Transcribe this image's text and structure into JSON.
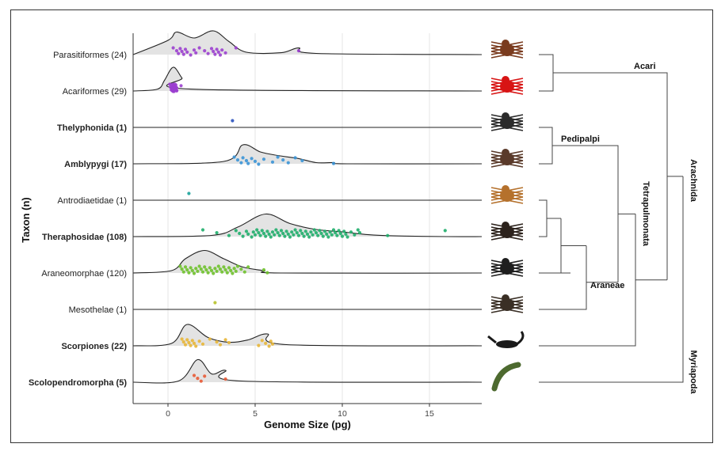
{
  "chart_data": {
    "type": "ridgeline",
    "xlabel": "Genome Size (pg)",
    "ylabel": "Taxon (n)",
    "xlim": [
      -2,
      18
    ],
    "xticks": [
      0,
      5,
      10,
      15
    ],
    "grid": "vertical",
    "rows": [
      {
        "label": "Parasitiformes (24)",
        "bold": false,
        "color": "#9b3fcf",
        "points": [
          0.3,
          0.5,
          0.6,
          0.7,
          0.8,
          0.9,
          1.0,
          1.1,
          1.3,
          1.5,
          1.6,
          1.8,
          2.1,
          2.3,
          2.5,
          2.6,
          2.7,
          2.8,
          2.9,
          3.0,
          3.1,
          3.3,
          3.9,
          7.5
        ],
        "density": [
          [
            0,
            0.6
          ],
          [
            0.5,
            0.95
          ],
          [
            1.5,
            0.7
          ],
          [
            2.6,
            1.0
          ],
          [
            3.5,
            0.55
          ],
          [
            4.5,
            0.1
          ],
          [
            6.5,
            0.08
          ],
          [
            7.5,
            0.28
          ],
          [
            8.5,
            0.05
          ]
        ]
      },
      {
        "label": "Acariformes (29)",
        "bold": false,
        "color": "#9b3fcf",
        "points": [
          0.1,
          0.15,
          0.2,
          0.2,
          0.25,
          0.25,
          0.3,
          0.3,
          0.3,
          0.35,
          0.35,
          0.4,
          0.4,
          0.4,
          0.45,
          0.5,
          0.5,
          0.3,
          0.2,
          0.35,
          0.25,
          0.4,
          0.3,
          0.45,
          0.2,
          0.3,
          0.35,
          0.5,
          0.75
        ],
        "density": [
          [
            -0.6,
            0.08
          ],
          [
            -0.2,
            0.45
          ],
          [
            0.3,
            1.0
          ],
          [
            0.8,
            0.55
          ],
          [
            1.3,
            0.08
          ]
        ]
      },
      {
        "label": "Thelyphonida (1)",
        "bold": true,
        "color": "#2a52be",
        "points": [
          3.7
        ],
        "density": []
      },
      {
        "label": "Amblypygi (17)",
        "bold": true,
        "color": "#3a93d6",
        "points": [
          3.8,
          4.0,
          4.2,
          4.3,
          4.5,
          4.6,
          4.8,
          5.0,
          5.2,
          5.5,
          6.0,
          6.3,
          6.6,
          6.9,
          7.3,
          7.7,
          9.5
        ],
        "density": [
          [
            3.2,
            0.1
          ],
          [
            4.3,
            0.8
          ],
          [
            5.3,
            0.5
          ],
          [
            6.3,
            0.35
          ],
          [
            7.5,
            0.22
          ],
          [
            8.5,
            0.05
          ],
          [
            9.5,
            0.05
          ],
          [
            10.3,
            0.0
          ]
        ]
      },
      {
        "label": "Antrodiaetidae (1)",
        "bold": false,
        "color": "#1aa39b",
        "points": [
          1.2
        ],
        "density": []
      },
      {
        "label": "Theraphosidae (108)",
        "bold": true,
        "color": "#1fae6b",
        "points": [
          2.0,
          2.8,
          3.5,
          3.9,
          4.1,
          4.3,
          4.5,
          4.6,
          4.8,
          4.9,
          5.0,
          5.1,
          5.2,
          5.3,
          5.4,
          5.5,
          5.6,
          5.7,
          5.8,
          5.9,
          6.0,
          6.1,
          6.2,
          6.3,
          6.4,
          6.5,
          6.6,
          6.7,
          6.8,
          6.9,
          7.0,
          7.1,
          7.2,
          7.3,
          7.4,
          7.5,
          7.6,
          7.7,
          7.8,
          7.9,
          8.0,
          8.1,
          8.2,
          8.3,
          8.4,
          8.5,
          8.6,
          8.7,
          8.8,
          8.9,
          9.0,
          9.1,
          9.2,
          9.3,
          9.4,
          9.5,
          9.6,
          9.7,
          9.8,
          9.9,
          10.0,
          10.1,
          10.2,
          10.3,
          10.5,
          10.7,
          10.9,
          11.0,
          12.6,
          15.9
        ],
        "density": [
          [
            2.5,
            0.05
          ],
          [
            4.0,
            0.4
          ],
          [
            5.6,
            0.95
          ],
          [
            7.0,
            0.55
          ],
          [
            8.5,
            0.3
          ],
          [
            10.0,
            0.2
          ],
          [
            11.5,
            0.08
          ],
          [
            13.0,
            0.03
          ],
          [
            16.0,
            0.0
          ]
        ]
      },
      {
        "label": "Araneomorphae (120)",
        "bold": false,
        "color": "#6ec12b",
        "points": [
          0.7,
          0.8,
          0.9,
          1.0,
          1.1,
          1.2,
          1.3,
          1.4,
          1.5,
          1.6,
          1.7,
          1.8,
          1.9,
          2.0,
          2.1,
          2.2,
          2.3,
          2.4,
          2.5,
          2.6,
          2.7,
          2.8,
          2.9,
          3.0,
          3.1,
          3.2,
          3.3,
          3.4,
          3.5,
          3.6,
          3.7,
          3.8,
          3.9,
          4.0,
          4.2,
          4.4,
          4.6,
          5.5,
          5.7
        ],
        "density": [
          [
            0.2,
            0.1
          ],
          [
            1.0,
            0.6
          ],
          [
            2.1,
            0.95
          ],
          [
            3.2,
            0.6
          ],
          [
            4.3,
            0.25
          ],
          [
            5.5,
            0.1
          ],
          [
            6.5,
            0.0
          ]
        ]
      },
      {
        "label": "Mesothelae (1)",
        "bold": false,
        "color": "#b7c22b",
        "points": [
          2.7
        ],
        "density": []
      },
      {
        "label": "Scorpiones (22)",
        "bold": true,
        "color": "#e8b637",
        "points": [
          0.8,
          0.9,
          1.0,
          1.1,
          1.2,
          1.3,
          1.4,
          1.5,
          1.6,
          1.8,
          2.0,
          2.4,
          2.8,
          3.0,
          3.3,
          3.5,
          5.2,
          5.4,
          5.6,
          5.8,
          5.9,
          6.0
        ],
        "density": [
          [
            0.2,
            0.1
          ],
          [
            1.1,
            0.9
          ],
          [
            2.3,
            0.35
          ],
          [
            3.5,
            0.15
          ],
          [
            4.6,
            0.25
          ],
          [
            5.7,
            0.5
          ],
          [
            6.8,
            0.05
          ]
        ]
      },
      {
        "label": "Scolopendromorpha (5)",
        "bold": true,
        "color": "#e85a35",
        "points": [
          1.5,
          1.7,
          1.9,
          2.1,
          3.3
        ],
        "density": [
          [
            0.6,
            0.05
          ],
          [
            1.7,
            0.95
          ],
          [
            2.5,
            0.35
          ],
          [
            3.3,
            0.5
          ],
          [
            4.2,
            0.05
          ]
        ]
      }
    ],
    "clades": [
      {
        "name": "Acari",
        "members": [
          "Parasitiformes",
          "Acariformes"
        ]
      },
      {
        "name": "Pedipalpi",
        "members": [
          "Thelyphonida",
          "Amblypygi"
        ]
      },
      {
        "name": "Araneae",
        "members": [
          "Antrodiaetidae",
          "Theraphosidae",
          "Araneomorphae",
          "Mesothelae"
        ]
      },
      {
        "name": "Tetrapulmonata",
        "members": [
          "Pedipalpi",
          "Araneae"
        ]
      },
      {
        "name": "Arachnida",
        "members": [
          "Acari",
          "Tetrapulmonata",
          "Scorpiones"
        ]
      },
      {
        "name": "Myriapoda",
        "members": [
          "Scolopendromorpha"
        ]
      }
    ]
  },
  "icons": [
    "tick-icon",
    "mite-icon",
    "whip-scorpion-icon",
    "whip-spider-icon",
    "antrodiaetid-spider-icon",
    "tarantula-icon",
    "araneomorph-spider-icon",
    "mesothele-spider-icon",
    "scorpion-icon",
    "centipede-icon"
  ]
}
